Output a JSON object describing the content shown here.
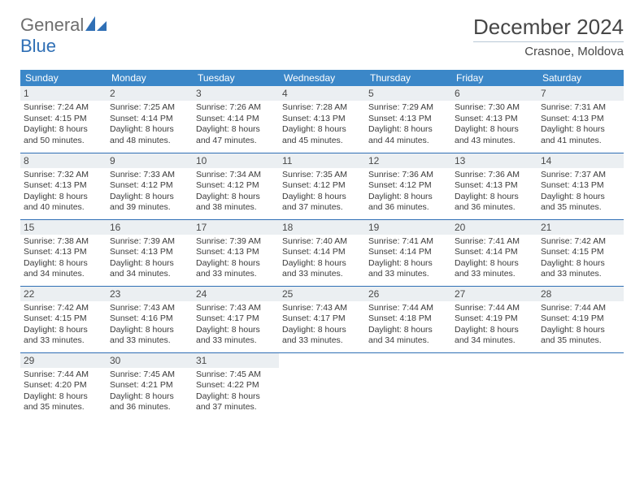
{
  "logo": {
    "part1": "General",
    "part2": "Blue"
  },
  "title": "December 2024",
  "location": "Crasnoe, Moldova",
  "colors": {
    "header_bg": "#3b87c8",
    "header_text": "#ffffff",
    "daynum_bg": "#ebeff2",
    "border": "#2f6fb5",
    "logo_gray": "#6e6e6e",
    "logo_blue": "#2f6fb5"
  },
  "weekdays": [
    "Sunday",
    "Monday",
    "Tuesday",
    "Wednesday",
    "Thursday",
    "Friday",
    "Saturday"
  ],
  "days": [
    {
      "n": "1",
      "sr": "7:24 AM",
      "ss": "4:15 PM",
      "dl": "8 hours and 50 minutes."
    },
    {
      "n": "2",
      "sr": "7:25 AM",
      "ss": "4:14 PM",
      "dl": "8 hours and 48 minutes."
    },
    {
      "n": "3",
      "sr": "7:26 AM",
      "ss": "4:14 PM",
      "dl": "8 hours and 47 minutes."
    },
    {
      "n": "4",
      "sr": "7:28 AM",
      "ss": "4:13 PM",
      "dl": "8 hours and 45 minutes."
    },
    {
      "n": "5",
      "sr": "7:29 AM",
      "ss": "4:13 PM",
      "dl": "8 hours and 44 minutes."
    },
    {
      "n": "6",
      "sr": "7:30 AM",
      "ss": "4:13 PM",
      "dl": "8 hours and 43 minutes."
    },
    {
      "n": "7",
      "sr": "7:31 AM",
      "ss": "4:13 PM",
      "dl": "8 hours and 41 minutes."
    },
    {
      "n": "8",
      "sr": "7:32 AM",
      "ss": "4:13 PM",
      "dl": "8 hours and 40 minutes."
    },
    {
      "n": "9",
      "sr": "7:33 AM",
      "ss": "4:12 PM",
      "dl": "8 hours and 39 minutes."
    },
    {
      "n": "10",
      "sr": "7:34 AM",
      "ss": "4:12 PM",
      "dl": "8 hours and 38 minutes."
    },
    {
      "n": "11",
      "sr": "7:35 AM",
      "ss": "4:12 PM",
      "dl": "8 hours and 37 minutes."
    },
    {
      "n": "12",
      "sr": "7:36 AM",
      "ss": "4:12 PM",
      "dl": "8 hours and 36 minutes."
    },
    {
      "n": "13",
      "sr": "7:36 AM",
      "ss": "4:13 PM",
      "dl": "8 hours and 36 minutes."
    },
    {
      "n": "14",
      "sr": "7:37 AM",
      "ss": "4:13 PM",
      "dl": "8 hours and 35 minutes."
    },
    {
      "n": "15",
      "sr": "7:38 AM",
      "ss": "4:13 PM",
      "dl": "8 hours and 34 minutes."
    },
    {
      "n": "16",
      "sr": "7:39 AM",
      "ss": "4:13 PM",
      "dl": "8 hours and 34 minutes."
    },
    {
      "n": "17",
      "sr": "7:39 AM",
      "ss": "4:13 PM",
      "dl": "8 hours and 33 minutes."
    },
    {
      "n": "18",
      "sr": "7:40 AM",
      "ss": "4:14 PM",
      "dl": "8 hours and 33 minutes."
    },
    {
      "n": "19",
      "sr": "7:41 AM",
      "ss": "4:14 PM",
      "dl": "8 hours and 33 minutes."
    },
    {
      "n": "20",
      "sr": "7:41 AM",
      "ss": "4:14 PM",
      "dl": "8 hours and 33 minutes."
    },
    {
      "n": "21",
      "sr": "7:42 AM",
      "ss": "4:15 PM",
      "dl": "8 hours and 33 minutes."
    },
    {
      "n": "22",
      "sr": "7:42 AM",
      "ss": "4:15 PM",
      "dl": "8 hours and 33 minutes."
    },
    {
      "n": "23",
      "sr": "7:43 AM",
      "ss": "4:16 PM",
      "dl": "8 hours and 33 minutes."
    },
    {
      "n": "24",
      "sr": "7:43 AM",
      "ss": "4:17 PM",
      "dl": "8 hours and 33 minutes."
    },
    {
      "n": "25",
      "sr": "7:43 AM",
      "ss": "4:17 PM",
      "dl": "8 hours and 33 minutes."
    },
    {
      "n": "26",
      "sr": "7:44 AM",
      "ss": "4:18 PM",
      "dl": "8 hours and 34 minutes."
    },
    {
      "n": "27",
      "sr": "7:44 AM",
      "ss": "4:19 PM",
      "dl": "8 hours and 34 minutes."
    },
    {
      "n": "28",
      "sr": "7:44 AM",
      "ss": "4:19 PM",
      "dl": "8 hours and 35 minutes."
    },
    {
      "n": "29",
      "sr": "7:44 AM",
      "ss": "4:20 PM",
      "dl": "8 hours and 35 minutes."
    },
    {
      "n": "30",
      "sr": "7:45 AM",
      "ss": "4:21 PM",
      "dl": "8 hours and 36 minutes."
    },
    {
      "n": "31",
      "sr": "7:45 AM",
      "ss": "4:22 PM",
      "dl": "8 hours and 37 minutes."
    }
  ],
  "labels": {
    "sunrise": "Sunrise:",
    "sunset": "Sunset:",
    "daylight": "Daylight:"
  }
}
